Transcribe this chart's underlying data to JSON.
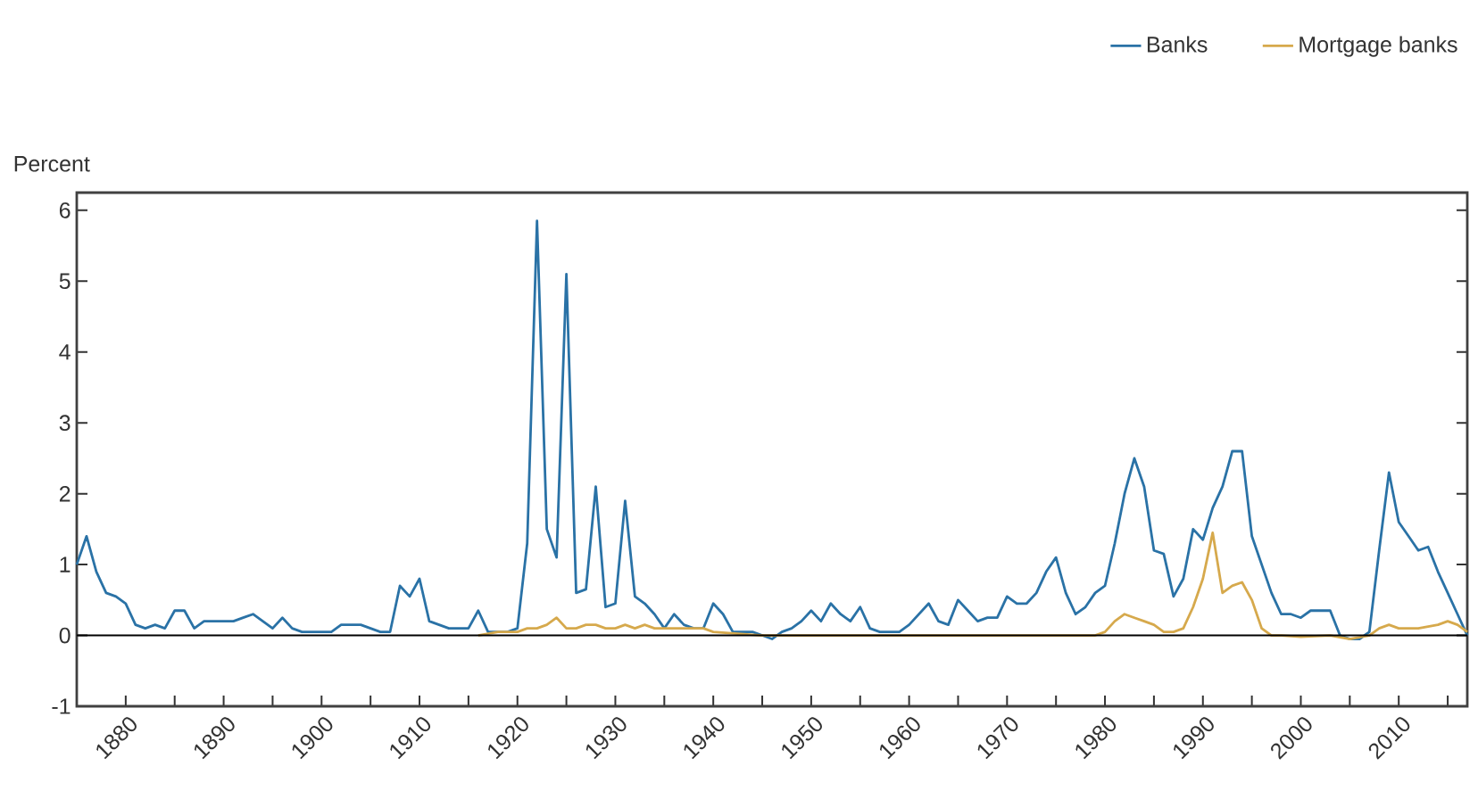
{
  "chart_data": {
    "type": "line",
    "ylabel": "Percent",
    "xlim": [
      1875,
      2017
    ],
    "ylim": [
      -1,
      6.25
    ],
    "xticks": [
      1880,
      {
        "value": 1885,
        "label": null
      },
      1890,
      {
        "value": 1895,
        "label": null
      },
      1900,
      {
        "value": 1905,
        "label": null
      },
      1910,
      {
        "value": 1915,
        "label": null
      },
      1920,
      {
        "value": 1925,
        "label": null
      },
      1930,
      {
        "value": 1935,
        "label": null
      },
      1940,
      {
        "value": 1945,
        "label": null
      },
      1950,
      {
        "value": 1955,
        "label": null
      },
      1960,
      {
        "value": 1965,
        "label": null
      },
      1970,
      {
        "value": 1975,
        "label": null
      },
      1980,
      {
        "value": 1985,
        "label": null
      },
      1990,
      {
        "value": 1995,
        "label": null
      },
      2000,
      {
        "value": 2005,
        "label": null
      },
      2010,
      {
        "value": 2015,
        "label": null
      }
    ],
    "yticks": [
      -1,
      0,
      1,
      2,
      3,
      4,
      5,
      6
    ],
    "grid": false,
    "legend": "top right",
    "marker": "none",
    "line_style": "solid",
    "ref_lines": [
      {
        "axis": "y",
        "value": 0,
        "color": "#000000"
      }
    ],
    "series": [
      {
        "name": "Banks",
        "color": "#2a72a6",
        "x": [
          1875,
          1876,
          1877,
          1878,
          1879,
          1880,
          1881,
          1882,
          1883,
          1884,
          1885,
          1886,
          1887,
          1888,
          1889,
          1890,
          1891,
          1892,
          1893,
          1894,
          1895,
          1896,
          1897,
          1898,
          1899,
          1900,
          1901,
          1902,
          1903,
          1904,
          1905,
          1906,
          1907,
          1908,
          1909,
          1910,
          1911,
          1912,
          1913,
          1914,
          1915,
          1916,
          1917,
          1918,
          1919,
          1920,
          1921,
          1922,
          1923,
          1924,
          1925,
          1926,
          1927,
          1928,
          1929,
          1930,
          1931,
          1932,
          1933,
          1934,
          1935,
          1936,
          1937,
          1938,
          1939,
          1940,
          1941,
          1942,
          1943,
          1944,
          1945,
          1946,
          1947,
          1948,
          1949,
          1950,
          1951,
          1952,
          1953,
          1954,
          1955,
          1956,
          1957,
          1958,
          1959,
          1960,
          1961,
          1962,
          1963,
          1964,
          1965,
          1966,
          1967,
          1968,
          1969,
          1970,
          1971,
          1972,
          1973,
          1974,
          1975,
          1976,
          1977,
          1978,
          1979,
          1980,
          1981,
          1982,
          1983,
          1984,
          1985,
          1986,
          1987,
          1988,
          1989,
          1990,
          1991,
          1992,
          1993,
          1994,
          1995,
          1996,
          1997,
          1998,
          1999,
          2000,
          2001,
          2002,
          2003,
          2004,
          2005,
          2006,
          2007,
          2008,
          2009,
          2010,
          2011,
          2012,
          2013,
          2014,
          2015,
          2016,
          2017
        ],
        "values": [
          1.0,
          1.4,
          0.9,
          0.6,
          0.55,
          0.45,
          0.15,
          0.1,
          0.15,
          0.1,
          0.35,
          0.35,
          0.1,
          0.2,
          0.2,
          0.2,
          0.2,
          0.25,
          0.3,
          0.2,
          0.1,
          0.25,
          0.1,
          0.05,
          0.05,
          0.05,
          0.05,
          0.15,
          0.15,
          0.15,
          0.1,
          0.05,
          0.05,
          0.7,
          0.55,
          0.8,
          0.2,
          0.15,
          0.1,
          0.1,
          0.1,
          0.35,
          0.05,
          0.05,
          0.05,
          0.1,
          1.3,
          5.85,
          1.5,
          1.1,
          5.1,
          0.6,
          0.65,
          2.1,
          0.4,
          0.45,
          1.9,
          0.55,
          0.45,
          0.3,
          0.1,
          0.3,
          0.15,
          0.1,
          0.1,
          0.45,
          0.3,
          0.05,
          0.05,
          0.05,
          0.0,
          -0.05,
          0.05,
          0.1,
          0.2,
          0.35,
          0.2,
          0.45,
          0.3,
          0.2,
          0.4,
          0.1,
          0.05,
          0.05,
          0.05,
          0.15,
          0.3,
          0.45,
          0.2,
          0.15,
          0.5,
          0.35,
          0.2,
          0.25,
          0.25,
          0.55,
          0.45,
          0.45,
          0.6,
          0.9,
          1.1,
          0.6,
          0.3,
          0.4,
          0.6,
          0.7,
          1.3,
          2.0,
          2.5,
          2.1,
          1.2,
          1.15,
          0.55,
          0.8,
          1.5,
          1.35,
          1.8,
          2.1,
          2.6,
          2.6,
          1.4,
          1.0,
          0.6,
          0.3,
          0.3,
          0.25,
          0.35,
          0.35,
          0.35,
          0.0,
          -0.05,
          -0.05,
          0.05,
          1.2,
          2.3,
          1.6,
          1.4,
          1.2,
          1.25,
          0.9,
          0.6,
          0.3,
          0.0
        ]
      },
      {
        "name": "Mortgage banks",
        "color": "#d6a94c",
        "x": [
          1916,
          1918,
          1920,
          1921,
          1922,
          1923,
          1924,
          1925,
          1926,
          1927,
          1928,
          1929,
          1930,
          1931,
          1932,
          1933,
          1934,
          1935,
          1936,
          1937,
          1938,
          1939,
          1940,
          1945,
          1950,
          1960,
          1970,
          1979,
          1980,
          1981,
          1982,
          1983,
          1984,
          1985,
          1986,
          1987,
          1988,
          1989,
          1990,
          1991,
          1992,
          1993,
          1994,
          1995,
          1996,
          1997,
          1998,
          2000,
          2003,
          2005,
          2007,
          2008,
          2009,
          2010,
          2012,
          2014,
          2015,
          2016,
          2017
        ],
        "values": [
          0.0,
          0.05,
          0.05,
          0.1,
          0.1,
          0.15,
          0.25,
          0.1,
          0.1,
          0.15,
          0.15,
          0.1,
          0.1,
          0.15,
          0.1,
          0.15,
          0.1,
          0.1,
          0.1,
          0.1,
          0.1,
          0.1,
          0.05,
          0.0,
          0.0,
          0.0,
          0.0,
          0.0,
          0.05,
          0.2,
          0.3,
          0.25,
          0.2,
          0.15,
          0.05,
          0.05,
          0.1,
          0.4,
          0.8,
          1.45,
          0.6,
          0.7,
          0.75,
          0.5,
          0.1,
          0.0,
          0.0,
          -0.02,
          0.0,
          -0.05,
          0.0,
          0.1,
          0.15,
          0.1,
          0.1,
          0.15,
          0.2,
          0.15,
          0.05
        ]
      }
    ]
  }
}
